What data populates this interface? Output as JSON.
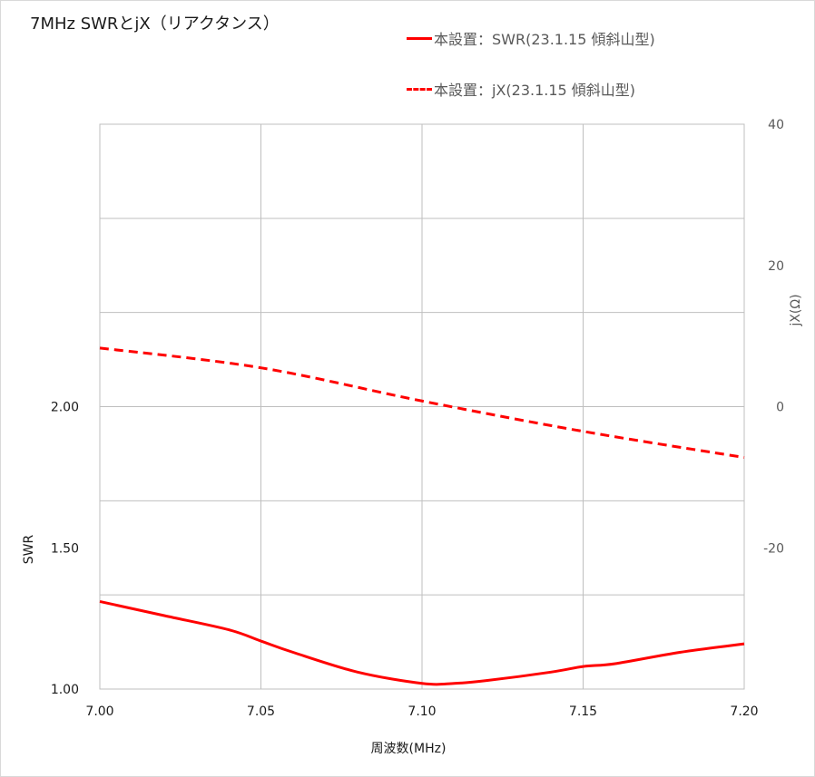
{
  "chart_data": {
    "type": "line",
    "title": "7MHz SWRとjX（リアクタンス）",
    "xlabel": "周波数(MHz)",
    "ylabel": "SWR",
    "y2label": "jX(Ω)",
    "xlim": [
      7.0,
      7.2
    ],
    "ylim": [
      1.0,
      3.0
    ],
    "y2lim": [
      -40,
      40
    ],
    "x_ticks": [
      "7.00",
      "7.05",
      "7.10",
      "7.15",
      "7.20"
    ],
    "y_ticks": [
      "1.00",
      "1.50",
      "2.00"
    ],
    "y_tick_values": [
      1.0,
      1.5,
      2.0
    ],
    "y2_ticks": [
      "-20",
      "0",
      "20",
      "40"
    ],
    "y2_tick_values": [
      -20,
      0,
      20,
      40
    ],
    "grid": true,
    "legend_position": "top-right",
    "series": [
      {
        "name": "本設置：SWR(23.1.15 傾斜山型)",
        "axis": "left",
        "style": "solid",
        "color": "#ff0000",
        "x": [
          7.0,
          7.02,
          7.04,
          7.05,
          7.06,
          7.08,
          7.1,
          7.11,
          7.12,
          7.14,
          7.15,
          7.16,
          7.18,
          7.2
        ],
        "values": [
          1.31,
          1.26,
          1.21,
          1.17,
          1.13,
          1.06,
          1.02,
          1.02,
          1.03,
          1.06,
          1.08,
          1.09,
          1.13,
          1.16
        ]
      },
      {
        "name": "本設置：jX(23.1.15 傾斜山型)",
        "axis": "right",
        "style": "dashed",
        "color": "#ff0000",
        "x": [
          7.0,
          7.05,
          7.1,
          7.15,
          7.2
        ],
        "values": [
          8.3,
          5.5,
          0.8,
          -3.5,
          -7.2
        ]
      }
    ]
  }
}
